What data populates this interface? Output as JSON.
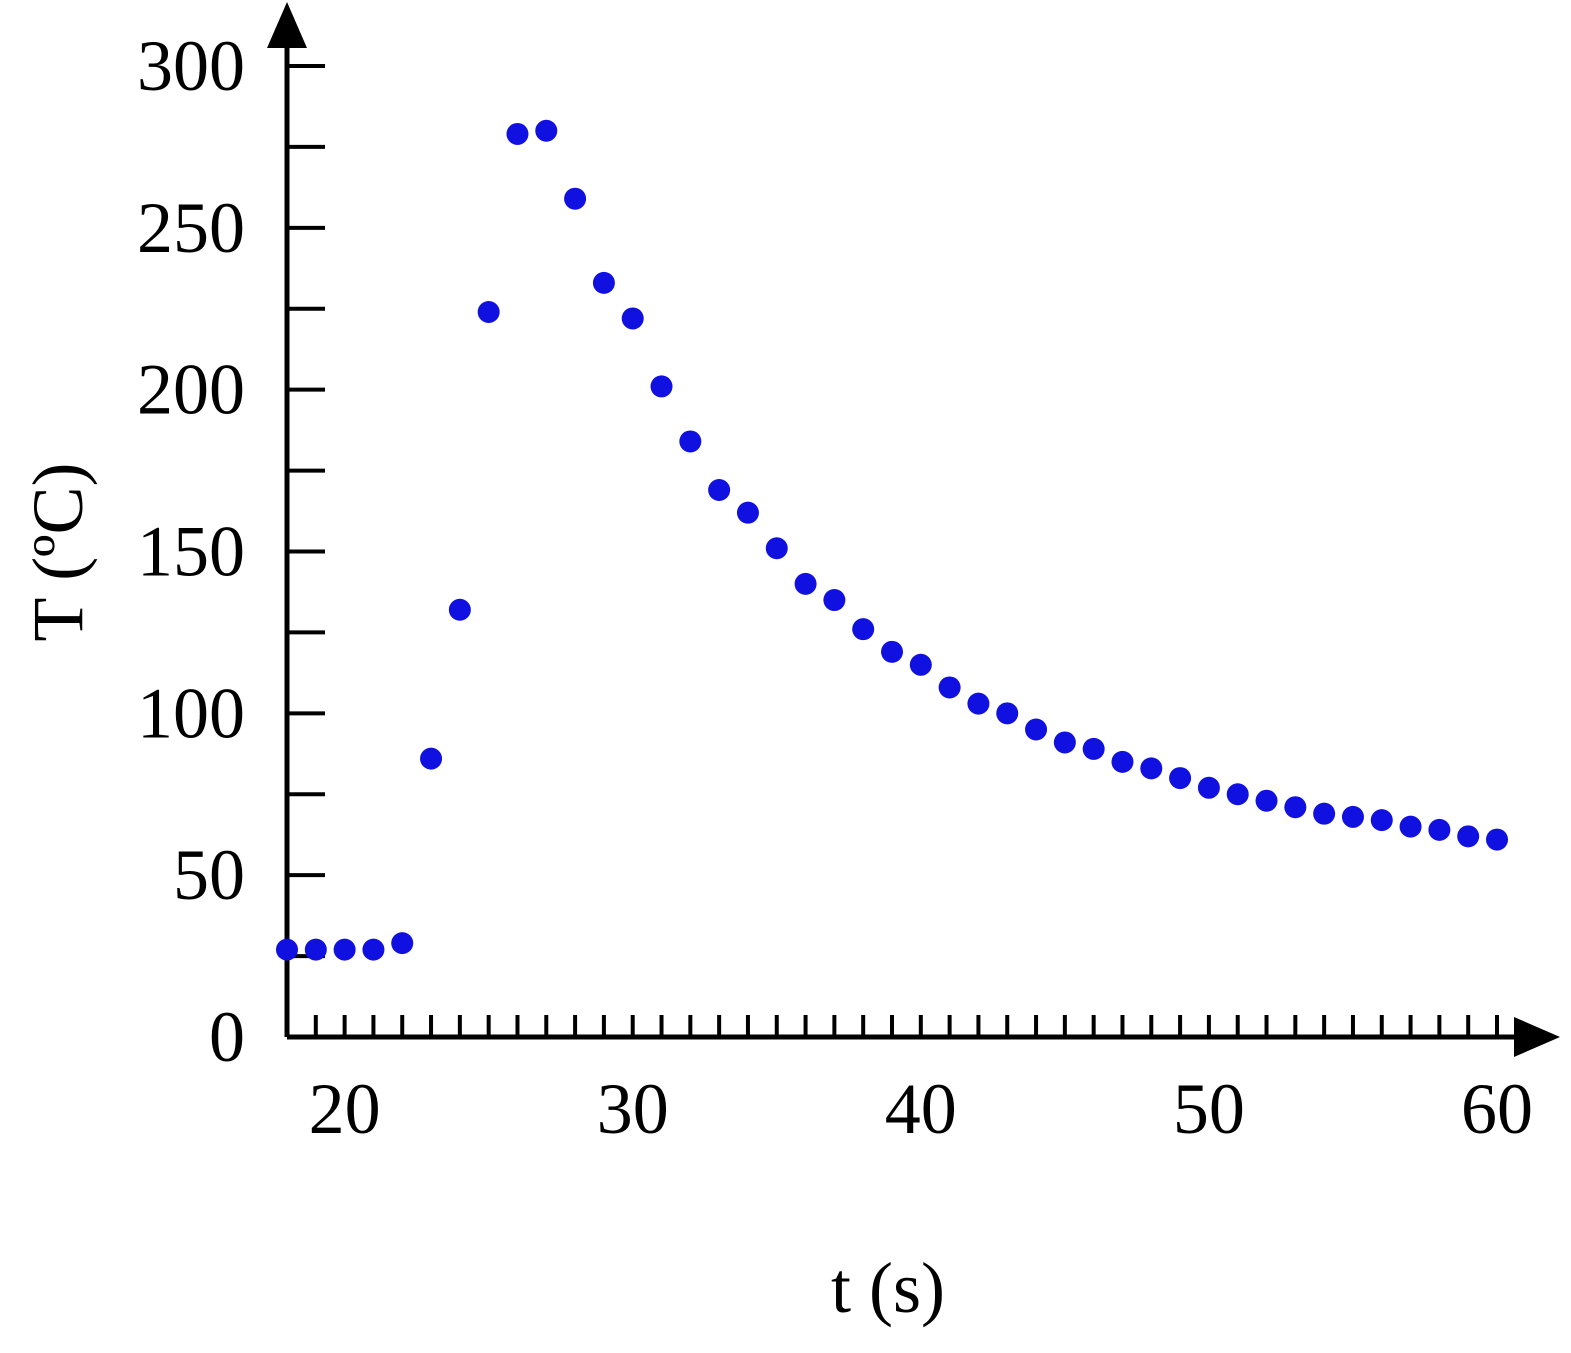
{
  "chart_data": {
    "type": "scatter",
    "xlabel": "t (s)",
    "ylabel": "T (ºC)",
    "xlim": [
      18,
      60
    ],
    "ylim": [
      0,
      300
    ],
    "x_ticks": [
      20,
      30,
      40,
      50,
      60
    ],
    "y_ticks": [
      0,
      50,
      100,
      150,
      200,
      250,
      300
    ],
    "x_minor_step": 1,
    "y_minor_step": 25,
    "grid": false,
    "marker_color": "#1010e0",
    "axis_color": "#000000",
    "series": [
      {
        "x": [
          18,
          19,
          20,
          21,
          22,
          23,
          24,
          25,
          26,
          27,
          28,
          29,
          30,
          31,
          32,
          33,
          34,
          35,
          36,
          37,
          38,
          39,
          40,
          41,
          42,
          43,
          44,
          45,
          46,
          47,
          48,
          49,
          50,
          51,
          52,
          53,
          54,
          55,
          56,
          57,
          58,
          59,
          60
        ],
        "y": [
          27,
          27,
          27,
          27,
          29,
          86,
          132,
          224,
          279,
          280,
          259,
          233,
          222,
          201,
          184,
          169,
          162,
          151,
          140,
          135,
          126,
          119,
          115,
          108,
          103,
          100,
          95,
          91,
          89,
          85,
          83,
          80,
          77,
          75,
          73,
          71,
          69,
          68,
          67,
          65,
          64,
          62,
          61
        ]
      }
    ]
  }
}
